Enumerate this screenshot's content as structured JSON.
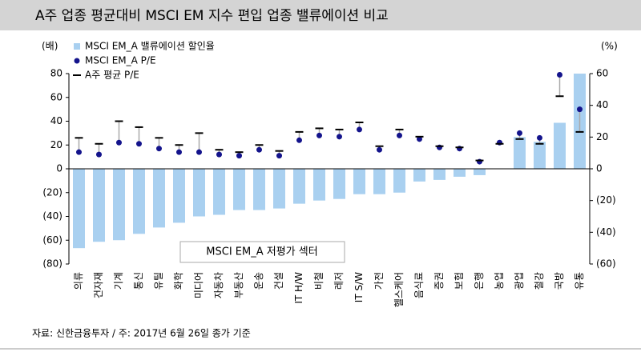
{
  "chart_data": {
    "type": "bar",
    "title": "A주 업종 평균대비 MSCI EM 지수 편입 업종 밸류에이션 비교",
    "y_label": "(배)",
    "y2_label": "(%)",
    "annotation": "MSCI EM_A 저평가 섹터",
    "source": "자료: 신한금융투자   / 주: 2017년 6월 26일 종가 기준",
    "categories": [
      "의류",
      "건자재",
      "기계",
      "통신",
      "유틸",
      "화학",
      "미디어",
      "자동차",
      "부동산",
      "운송",
      "건설",
      "IT H/W",
      "비철",
      "레저",
      "IT S/W",
      "가전",
      "헬스케어",
      "음식료",
      "증권",
      "보험",
      "은행",
      "농업",
      "광업",
      "철강",
      "국방",
      "유통"
    ],
    "series": [
      {
        "name": "MSCI EM_A 밸류에이션 할인율",
        "type": "bar",
        "axis": "y2",
        "color": "#a9d0f0",
        "values": [
          -50,
          -46,
          -45,
          -41,
          -37,
          -34,
          -30,
          -29,
          -26,
          -26,
          -25,
          -22,
          -20,
          -19,
          -16,
          -16,
          -15,
          -8,
          -7,
          -5,
          -4,
          0,
          20,
          17,
          29,
          60
        ]
      },
      {
        "name": "MSCI EM_A P/E",
        "type": "dot",
        "color": "#14148c",
        "values": [
          14,
          12,
          22,
          21,
          17,
          14,
          14,
          12,
          11,
          16,
          11,
          24,
          28,
          27,
          33,
          16,
          28,
          25,
          18,
          17,
          6,
          22,
          30,
          26,
          79,
          50
        ]
      },
      {
        "name": "A주 평균 P/E",
        "type": "dash",
        "color": "#000000",
        "values": [
          26,
          21,
          40,
          35,
          26,
          20,
          30,
          16,
          14,
          20,
          15,
          31,
          34,
          33,
          39,
          19,
          33,
          27,
          19,
          18,
          7,
          21,
          25,
          21,
          61,
          31
        ]
      }
    ],
    "ylim": [
      -80,
      80
    ],
    "yticks": [
      {
        "value": -80,
        "label": "(80)"
      },
      {
        "value": -60,
        "label": "(60)"
      },
      {
        "value": -40,
        "label": "(40)"
      },
      {
        "value": -20,
        "label": "(20)"
      },
      0,
      20,
      40,
      60,
      80
    ],
    "y2lim": [
      -60,
      60
    ],
    "y2ticks": [
      {
        "value": -60,
        "label": "(60)"
      },
      {
        "value": -40,
        "label": "(40)"
      },
      {
        "value": -20,
        "label": "(20)"
      },
      0,
      20,
      40,
      60
    ]
  }
}
